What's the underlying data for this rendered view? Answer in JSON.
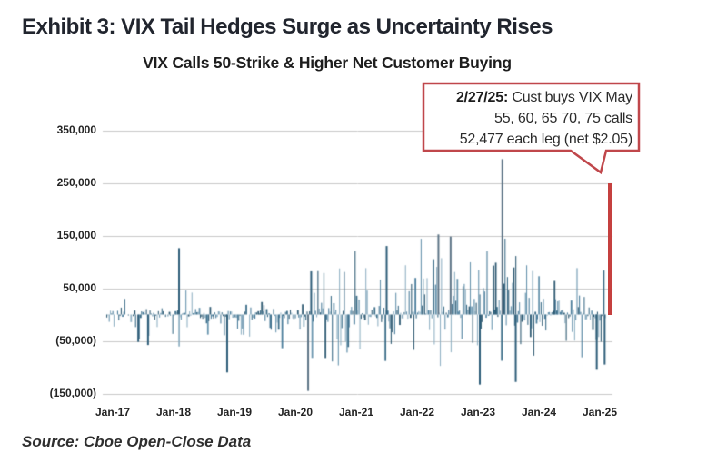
{
  "page": {
    "exhibit_title": "Exhibit 3: VIX Tail Hedges Surge as Uncertainty Rises",
    "source_note": "Source: Cboe Open-Close Data"
  },
  "annotation_callout": {
    "date_bold": "2/27/25:",
    "line1_rest": " Cust buys VIX May",
    "line2": "55, 60, 65 70, 75 calls",
    "line3": "52,477 each leg (net $2.05)"
  },
  "colors": {
    "accent_red": "#c5403f",
    "callout_border": "#c0474b",
    "gridline": "#c9c9c9",
    "bar_palette": [
      "#1f4e68",
      "#2d627f",
      "#3d7394",
      "#5d8da8",
      "#8aacc0"
    ],
    "key_bar": "#2f5e79",
    "tall_spike_bar": "#5d7486"
  },
  "chart_data": {
    "type": "bar",
    "title": "VIX Calls 50-Strike & Higher Net Customer Buying",
    "xlabel": "",
    "ylabel": "",
    "series_name": "Net customer buying of VIX calls, 50-strike & higher (contracts)",
    "grid": "horizontal",
    "legend": "none",
    "ylim": [
      -150000,
      350000
    ],
    "x_ticks": [
      "Jan-17",
      "Jan-18",
      "Jan-19",
      "Jan-20",
      "Jan-21",
      "Jan-22",
      "Jan-23",
      "Jan-24",
      "Jan-25"
    ],
    "y_ticks": [
      {
        "label": "350,000",
        "value": 350000
      },
      {
        "label": "250,000",
        "value": 250000
      },
      {
        "label": "150,000",
        "value": 150000
      },
      {
        "label": "50,000",
        "value": 50000
      },
      {
        "label": "(50,000)",
        "value": -50000
      },
      {
        "label": "(150,000)",
        "value": -150000
      }
    ],
    "key_points": [
      {
        "date": "Jun-17",
        "t": 2017.42,
        "value": -52000
      },
      {
        "date": "Aug-17",
        "t": 2017.58,
        "value": -58000
      },
      {
        "date": "Feb-18",
        "t": 2018.09,
        "value": 126000
      },
      {
        "date": "Nov-18",
        "t": 2018.88,
        "value": -110000
      },
      {
        "date": "Mar-20",
        "t": 2020.21,
        "value": -145000
      },
      {
        "date": "Apr-20",
        "t": 2020.26,
        "value": 82000
      },
      {
        "date": "Jul-21",
        "t": 2021.5,
        "value": 130000
      },
      {
        "date": "May-22",
        "t": 2022.35,
        "value": 152000
      },
      {
        "date": "Jul-22",
        "t": 2022.55,
        "value": 148000
      },
      {
        "date": "Jan-23",
        "t": 2023.03,
        "value": -133000
      },
      {
        "date": "May-23",
        "t": 2023.4,
        "value": 295000
      },
      {
        "date": "Aug-23",
        "t": 2023.62,
        "value": -128000
      },
      {
        "date": "Dec-24",
        "t": 2024.95,
        "value": -105000
      },
      {
        "date": "Jan-25",
        "t": 2025.08,
        "value": -95000
      },
      {
        "date": "2/27/25",
        "t": 2025.16,
        "value": 250000,
        "highlight": true
      }
    ],
    "noise_eras": [
      {
        "from": 2016.85,
        "to": 2018.04,
        "pos": 14000,
        "neg": 24000,
        "pos_frac": 0.38,
        "p_spike": 0.04,
        "spike_pos": 32000,
        "spike_neg": 56000,
        "density": 0.8
      },
      {
        "from": 2018.04,
        "to": 2020.16,
        "pos": 30000,
        "neg": 42000,
        "pos_frac": 0.46,
        "p_spike": 0.06,
        "spike_pos": 52000,
        "spike_neg": 72000,
        "density": 0.95
      },
      {
        "from": 2020.16,
        "to": 2020.5,
        "pos": 75000,
        "neg": 60000,
        "pos_frac": 0.5,
        "p_spike": 0.15,
        "spike_pos": 95000,
        "spike_neg": 115000,
        "density": 1
      },
      {
        "from": 2020.5,
        "to": 2022.0,
        "pos": 95000,
        "neg": 68000,
        "pos_frac": 0.56,
        "p_spike": 0.13,
        "spike_pos": 132000,
        "spike_neg": 98000,
        "density": 1
      },
      {
        "from": 2022.0,
        "to": 2023.0,
        "pos": 112000,
        "neg": 75000,
        "pos_frac": 0.56,
        "p_spike": 0.15,
        "spike_pos": 155000,
        "spike_neg": 108000,
        "density": 1
      },
      {
        "from": 2023.0,
        "to": 2024.0,
        "pos": 100000,
        "neg": 70000,
        "pos_frac": 0.55,
        "p_spike": 0.12,
        "spike_pos": 150000,
        "spike_neg": 112000,
        "density": 1
      },
      {
        "from": 2024.0,
        "to": 2025.04,
        "pos": 68000,
        "neg": 54000,
        "pos_frac": 0.55,
        "p_spike": 0.09,
        "spike_pos": 102000,
        "spike_neg": 88000,
        "density": 1
      },
      {
        "from": 2025.04,
        "to": 2025.15,
        "pos": 95000,
        "neg": 58000,
        "pos_frac": 0.6,
        "p_spike": 0.2,
        "spike_pos": 112000,
        "spike_neg": 85000,
        "density": 1
      }
    ],
    "seed": 20250227
  }
}
